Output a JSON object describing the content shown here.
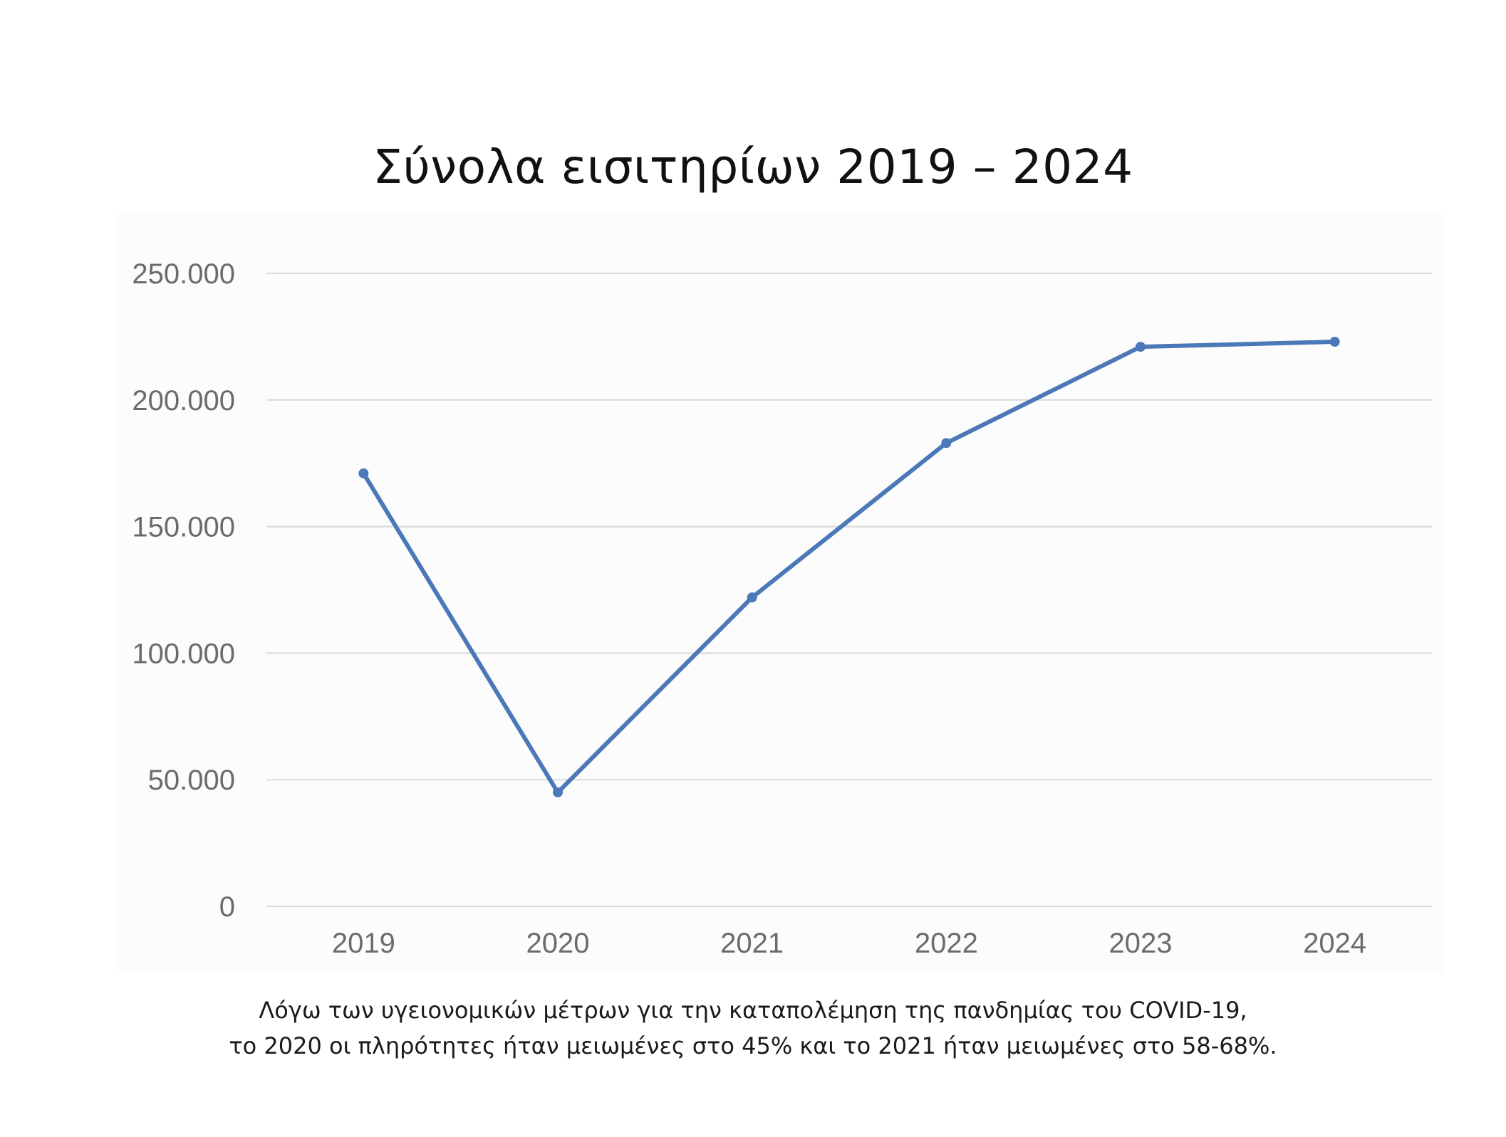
{
  "chart_data": {
    "type": "line",
    "title": "Σύνολα εισιτηρίων 2019 – 2024",
    "categories": [
      "2019",
      "2020",
      "2021",
      "2022",
      "2023",
      "2024"
    ],
    "series": [
      {
        "values": [
          171000,
          45000,
          122000,
          183000,
          221000,
          223000
        ],
        "color": "#4a78b8"
      }
    ],
    "y_ticks": [
      "0",
      "50.000",
      "100.000",
      "150.000",
      "200.000",
      "250.000"
    ],
    "ylim": [
      0,
      250000
    ],
    "xlabel": "",
    "ylabel": "",
    "grid": true,
    "legend": "none"
  },
  "caption": {
    "line1": "Λόγω των υγειονομικών μέτρων για την καταπολέμηση της πανδημίας του COVID-19,",
    "line2": "το 2020 οι πληρότητες ήταν μειωμένες στο 45% και το 2021 ήταν μειωμένες στο 58-68%."
  }
}
